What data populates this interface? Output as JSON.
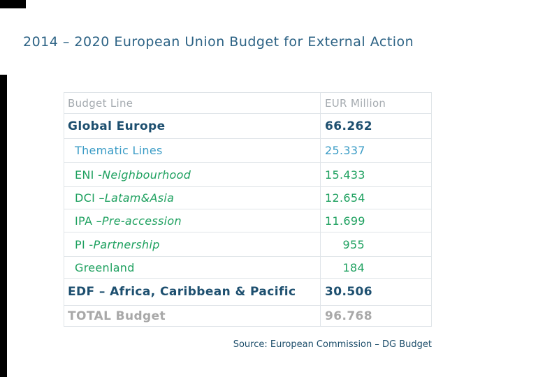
{
  "slide": {
    "title": "2014 – 2020 European Union Budget for External Action",
    "source_note": "Source: European Commission – DG Budget"
  },
  "table": {
    "columns": [
      "Budget Line",
      "EUR Million"
    ],
    "rows": [
      {
        "label": "Global Europe",
        "italic": "",
        "value": "66.262"
      },
      {
        "label": "Thematic Lines",
        "italic": "",
        "value": "25.337"
      },
      {
        "label": "ENI - ",
        "italic": "Neighbourhood",
        "value": "15.433"
      },
      {
        "label": "DCI – ",
        "italic": "Latam&Asia",
        "value": "12.654"
      },
      {
        "label": "IPA – ",
        "italic": "Pre-accession",
        "value": "11.699"
      },
      {
        "label": "PI - ",
        "italic": "Partnership",
        "value": "955"
      },
      {
        "label": "Greenland",
        "italic": "",
        "value": "184"
      },
      {
        "label": "EDF – Africa, Caribbean & Pacific",
        "italic": "",
        "value": "30.506"
      },
      {
        "label": "TOTAL Budget",
        "italic": "",
        "value": "96.768"
      }
    ]
  },
  "colors": {
    "title_blue": "#2d6385",
    "dark_navy": "#1d4f6f",
    "light_blue": "#3b9cc6",
    "green": "#1fa160",
    "header_gray": "#a5abb0",
    "total_gray": "#a8a8a8",
    "border_gray": "#dfe4e8",
    "edge_black": "#000000"
  }
}
